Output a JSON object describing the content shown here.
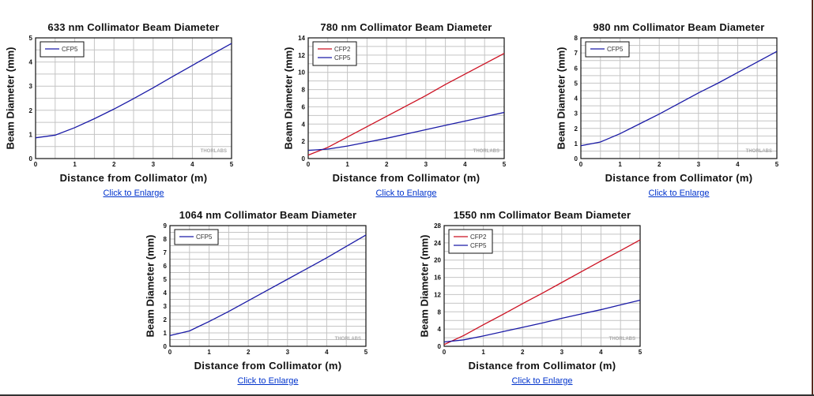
{
  "link_label": "Click to Enlarge",
  "watermark": "THORLABS",
  "colors": {
    "CFP2": "#cc1122",
    "CFP5": "#1a1aa6"
  },
  "chart_data": [
    {
      "type": "line",
      "title": "633 nm Collimator Beam Diameter",
      "xlabel": "Distance from Collimator (m)",
      "ylabel": "Beam Diameter (mm)",
      "xlim": [
        0,
        5
      ],
      "ylim": [
        0,
        5
      ],
      "xticks": [
        0,
        1,
        2,
        3,
        4,
        5
      ],
      "yticks": [
        0,
        1,
        2,
        3,
        4,
        5
      ],
      "ygrid_step": 0.5,
      "grid": true,
      "legend": "top-left",
      "x": [
        0,
        0.5,
        1,
        1.5,
        2,
        2.5,
        3,
        3.5,
        4,
        4.5,
        5
      ],
      "series": [
        {
          "name": "CFP5",
          "values": [
            0.86,
            0.97,
            1.28,
            1.65,
            2.05,
            2.48,
            2.93,
            3.4,
            3.86,
            4.32,
            4.77
          ]
        }
      ]
    },
    {
      "type": "line",
      "title": "780 nm Collimator Beam Diameter",
      "xlabel": "Distance from Collimator (m)",
      "ylabel": "Beam Diameter (mm)",
      "xlim": [
        0,
        5
      ],
      "ylim": [
        0,
        14
      ],
      "xticks": [
        0,
        1,
        2,
        3,
        4,
        5
      ],
      "yticks": [
        0,
        2,
        4,
        6,
        8,
        10,
        12,
        14
      ],
      "ygrid_step": 1,
      "grid": true,
      "legend": "top-left",
      "x": [
        0,
        0.5,
        1,
        1.5,
        2,
        2.5,
        3,
        3.5,
        4,
        4.5,
        5
      ],
      "series": [
        {
          "name": "CFP2",
          "values": [
            0.4,
            1.3,
            2.5,
            3.7,
            4.9,
            6.1,
            7.3,
            8.6,
            9.8,
            11.0,
            12.2
          ]
        },
        {
          "name": "CFP5",
          "values": [
            0.95,
            1.1,
            1.45,
            1.9,
            2.35,
            2.85,
            3.35,
            3.85,
            4.35,
            4.85,
            5.35
          ]
        }
      ]
    },
    {
      "type": "line",
      "title": "980 nm Collimator Beam Diameter",
      "xlabel": "Distance from Collimator (m)",
      "ylabel": "Beam Diameter (mm)",
      "xlim": [
        0,
        5
      ],
      "ylim": [
        0,
        8
      ],
      "xticks": [
        0,
        1,
        2,
        3,
        4,
        5
      ],
      "yticks": [
        0,
        1,
        2,
        3,
        4,
        5,
        6,
        7,
        8
      ],
      "ygrid_step": 0.5,
      "grid": true,
      "legend": "top-left",
      "x": [
        0,
        0.5,
        1,
        1.5,
        2,
        2.5,
        3,
        3.5,
        4,
        4.5,
        5
      ],
      "series": [
        {
          "name": "CFP5",
          "values": [
            0.85,
            1.1,
            1.65,
            2.3,
            2.95,
            3.65,
            4.35,
            5.0,
            5.7,
            6.4,
            7.1
          ]
        }
      ]
    },
    {
      "type": "line",
      "title": "1064 nm Collimator Beam Diameter",
      "xlabel": "Distance from Collimator (m)",
      "ylabel": "Beam Diameter (mm)",
      "xlim": [
        0,
        5
      ],
      "ylim": [
        0,
        9
      ],
      "xticks": [
        0,
        1,
        2,
        3,
        4,
        5
      ],
      "yticks": [
        0,
        1,
        2,
        3,
        4,
        5,
        6,
        7,
        8,
        9
      ],
      "ygrid_step": 0.5,
      "grid": true,
      "legend": "top-left",
      "x": [
        0,
        0.5,
        1,
        1.5,
        2,
        2.5,
        3,
        3.5,
        4,
        4.5,
        5
      ],
      "series": [
        {
          "name": "CFP5",
          "values": [
            0.8,
            1.15,
            1.85,
            2.6,
            3.4,
            4.2,
            5.0,
            5.8,
            6.6,
            7.45,
            8.3
          ]
        }
      ]
    },
    {
      "type": "line",
      "title": "1550 nm Collimator Beam Diameter",
      "xlabel": "Distance from Collimator (m)",
      "ylabel": "Beam Diameter (mm)",
      "xlim": [
        0,
        5
      ],
      "ylim": [
        0,
        28
      ],
      "xticks": [
        0,
        1,
        2,
        3,
        4,
        5
      ],
      "yticks": [
        0,
        4,
        8,
        12,
        16,
        20,
        24,
        28
      ],
      "ygrid_step": 2,
      "grid": true,
      "legend": "top-left",
      "x": [
        0,
        0.5,
        1,
        1.5,
        2,
        2.5,
        3,
        3.5,
        4,
        4.5,
        5
      ],
      "series": [
        {
          "name": "CFP2",
          "values": [
            0.4,
            2.5,
            5.0,
            7.4,
            9.9,
            12.3,
            14.8,
            17.3,
            19.8,
            22.2,
            24.7
          ]
        },
        {
          "name": "CFP5",
          "values": [
            1.0,
            1.5,
            2.4,
            3.4,
            4.4,
            5.4,
            6.5,
            7.5,
            8.5,
            9.6,
            10.7
          ]
        }
      ]
    }
  ]
}
